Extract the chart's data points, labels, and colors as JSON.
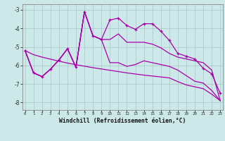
{
  "title": "",
  "xlabel": "Windchill (Refroidissement éolien,°C)",
  "bg_color": "#cce8e8",
  "line_color": "#aa00aa",
  "hours": [
    0,
    1,
    2,
    3,
    4,
    5,
    6,
    7,
    8,
    9,
    10,
    11,
    12,
    13,
    14,
    15,
    16,
    17,
    18,
    19,
    20,
    21,
    22,
    23
  ],
  "series_main": [
    -5.2,
    -6.4,
    -6.6,
    -6.2,
    -5.7,
    -5.1,
    -6.1,
    -3.1,
    -4.4,
    -4.6,
    -3.55,
    -3.45,
    -3.85,
    -4.05,
    -3.75,
    -3.75,
    -4.15,
    -4.65,
    -5.35,
    -5.5,
    -5.65,
    -6.15,
    -6.45,
    -7.5
  ],
  "series_upper": [
    -5.2,
    -6.4,
    -6.6,
    -6.2,
    -5.7,
    -5.1,
    -6.1,
    -3.1,
    -4.4,
    -4.6,
    -4.6,
    -4.3,
    -4.75,
    -4.75,
    -4.75,
    -4.85,
    -5.05,
    -5.35,
    -5.55,
    -5.65,
    -5.75,
    -5.85,
    -6.25,
    -7.9
  ],
  "series_lower": [
    -5.2,
    -6.4,
    -6.6,
    -6.2,
    -5.7,
    -5.1,
    -6.1,
    -3.1,
    -4.4,
    -4.6,
    -5.85,
    -5.85,
    -6.05,
    -5.95,
    -5.75,
    -5.85,
    -5.95,
    -6.05,
    -6.25,
    -6.55,
    -6.85,
    -6.95,
    -7.35,
    -7.9
  ],
  "series_linear": [
    -5.2,
    -5.42,
    -5.55,
    -5.66,
    -5.77,
    -5.87,
    -5.96,
    -6.04,
    -6.12,
    -6.19,
    -6.26,
    -6.33,
    -6.4,
    -6.46,
    -6.52,
    -6.57,
    -6.62,
    -6.67,
    -6.87,
    -7.05,
    -7.15,
    -7.25,
    -7.55,
    -7.9
  ],
  "ylim": [
    -8.4,
    -2.7
  ],
  "yticks": [
    -8,
    -7,
    -6,
    -5,
    -4,
    -3
  ],
  "xticks": [
    0,
    1,
    2,
    3,
    4,
    5,
    6,
    7,
    8,
    9,
    10,
    11,
    12,
    13,
    14,
    15,
    16,
    17,
    18,
    19,
    20,
    21,
    22,
    23
  ]
}
